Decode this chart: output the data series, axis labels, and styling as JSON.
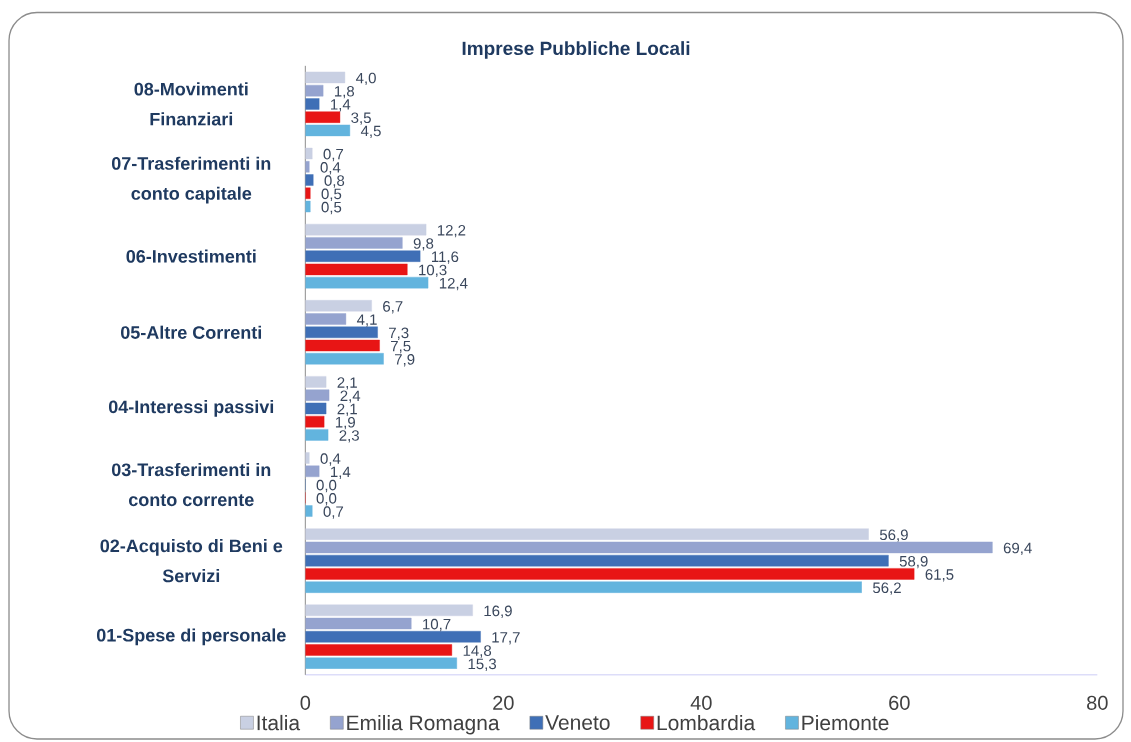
{
  "chart_data": {
    "type": "bar",
    "orientation": "horizontal",
    "title": "Imprese Pubbliche Locali",
    "categories": [
      "08-Movimenti Finanziari",
      "07-Trasferimenti in conto capitale",
      "06-Investimenti",
      "05-Altre Correnti",
      "04-Interessi passivi",
      "03-Trasferimenti in conto corrente",
      "02-Acquisto di Beni e Servizi",
      "01-Spese di personale"
    ],
    "series": [
      {
        "name": "Italia",
        "color": "#c9d0e3",
        "values": [
          4.0,
          0.7,
          12.2,
          6.7,
          2.1,
          0.4,
          56.9,
          16.9
        ],
        "value_labels": [
          "4,0",
          "0,7",
          "12,2",
          "6,7",
          "2,1",
          "0,4",
          "56,9",
          "16,9"
        ]
      },
      {
        "name": "Emilia Romagna",
        "color": "#95a3cf",
        "values": [
          1.8,
          0.4,
          9.8,
          4.1,
          2.4,
          1.4,
          69.4,
          10.7
        ],
        "value_labels": [
          "1,8",
          "0,4",
          "9,8",
          "4,1",
          "2,4",
          "1,4",
          "69,4",
          "10,7"
        ]
      },
      {
        "name": "Veneto",
        "color": "#3f6fb6",
        "values": [
          1.4,
          0.8,
          11.6,
          7.3,
          2.1,
          0.0,
          58.9,
          17.7
        ],
        "value_labels": [
          "1,4",
          "0,8",
          "11,6",
          "7,3",
          "2,1",
          "0,0",
          "58,9",
          "17,7"
        ]
      },
      {
        "name": "Lombardia",
        "color": "#e81515",
        "values": [
          3.5,
          0.5,
          10.3,
          7.5,
          1.9,
          0.0,
          61.5,
          14.8
        ],
        "value_labels": [
          "3,5",
          "0,5",
          "10,3",
          "7,5",
          "1,9",
          "0,0",
          "61,5",
          "14,8"
        ]
      },
      {
        "name": "Piemonte",
        "color": "#62b4de",
        "values": [
          4.5,
          0.5,
          12.4,
          7.9,
          2.3,
          0.7,
          56.2,
          15.3
        ],
        "value_labels": [
          "4,5",
          "0,5",
          "12,4",
          "7,9",
          "2,3",
          "0,7",
          "56,2",
          "15,3"
        ]
      }
    ],
    "xlim": [
      0,
      80
    ],
    "xticks": [
      0,
      20,
      40,
      60,
      80
    ],
    "legend": "bottom"
  }
}
